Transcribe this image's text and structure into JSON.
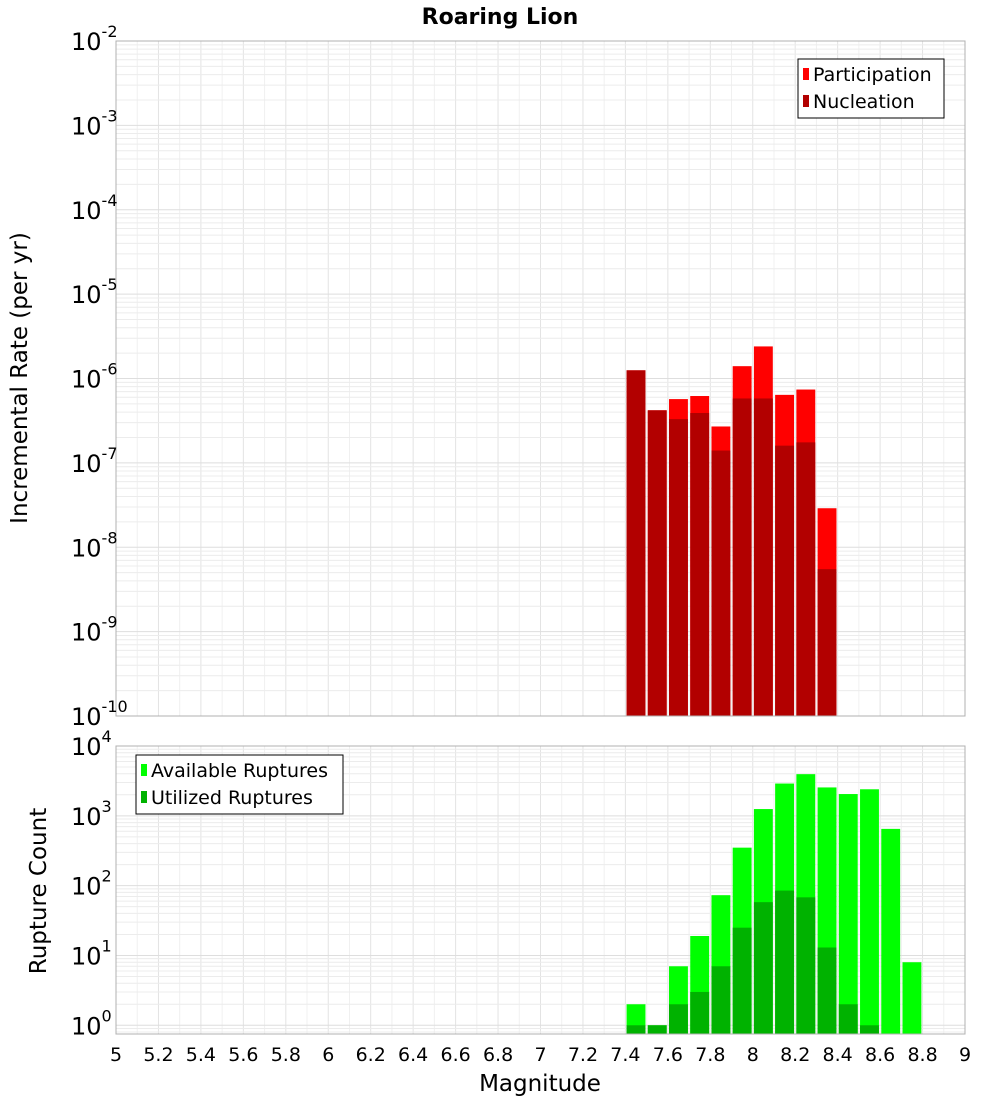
{
  "chart_data": {
    "title": "Roaring Lion",
    "xlabel": "Magnitude",
    "xlim": [
      5,
      9
    ],
    "xticks": [
      "5",
      "5.2",
      "5.4",
      "5.6",
      "5.8",
      "6",
      "6.2",
      "6.4",
      "6.6",
      "6.8",
      "7",
      "7.2",
      "7.4",
      "7.6",
      "7.8",
      "8",
      "8.2",
      "8.4",
      "8.6",
      "8.8",
      "9"
    ],
    "bin_width": 0.1,
    "panels": [
      {
        "type": "bar",
        "ylabel": "Incremental Rate (per yr)",
        "yscale": "log",
        "ylim": [
          1e-10,
          0.01
        ],
        "ytick_exponents": [
          "-10",
          "-9",
          "-8",
          "-7",
          "-6",
          "-5",
          "-4",
          "-3",
          "-2"
        ],
        "legend": {
          "position": "top-right",
          "entries": [
            {
              "label": "Participation",
              "color": "#ff0000"
            },
            {
              "label": "Nucleation",
              "color": "#b20000"
            }
          ]
        },
        "x": [
          7.45,
          7.55,
          7.65,
          7.75,
          7.85,
          7.95,
          8.05,
          8.15,
          8.25,
          8.35
        ],
        "series": [
          {
            "name": "Participation",
            "color": "#ff0000",
            "values": [
              1.25e-06,
              4.2e-07,
              5.7e-07,
              6.2e-07,
              2.7e-07,
              1.4e-06,
              2.4e-06,
              6.4e-07,
              7.4e-07,
              2.9e-08
            ]
          },
          {
            "name": "Nucleation",
            "color": "#b20000",
            "values": [
              1.25e-06,
              4.2e-07,
              3.3e-07,
              3.9e-07,
              1.4e-07,
              5.8e-07,
              5.8e-07,
              1.6e-07,
              1.75e-07,
              5.5e-09
            ]
          }
        ]
      },
      {
        "type": "bar",
        "ylabel": "Rupture Count",
        "yscale": "log",
        "ylim": [
          0.75,
          10000
        ],
        "ytick_exponents": [
          "0",
          "1",
          "2",
          "3",
          "4"
        ],
        "legend": {
          "position": "top-left",
          "entries": [
            {
              "label": "Available Ruptures",
              "color": "#00ff00"
            },
            {
              "label": "Utilized Ruptures",
              "color": "#00b200"
            }
          ]
        },
        "x": [
          7.45,
          7.55,
          7.65,
          7.75,
          7.85,
          7.95,
          8.05,
          8.15,
          8.25,
          8.35,
          8.45,
          8.55,
          8.65,
          8.75
        ],
        "series": [
          {
            "name": "Available Ruptures",
            "color": "#00ff00",
            "values": [
              2,
              1,
              7,
              19,
              73,
              350,
              1250,
              2900,
              3950,
              2550,
              2050,
              2400,
              650,
              8
            ]
          },
          {
            "name": "Utilized Ruptures",
            "color": "#00b200",
            "values": [
              1,
              1,
              2,
              3,
              7,
              25,
              58,
              85,
              68,
              13,
              2,
              1,
              null,
              null
            ]
          }
        ]
      }
    ]
  }
}
